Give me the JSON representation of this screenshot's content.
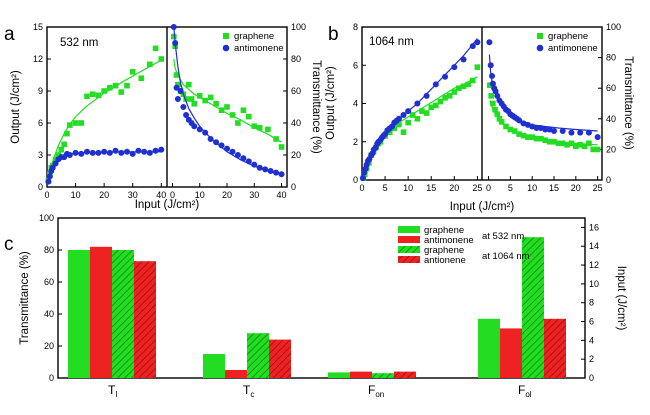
{
  "panel_labels": [
    "a",
    "b",
    "c"
  ],
  "colors": {
    "green": "#22dd22",
    "red": "#ee2222",
    "blue": "#1f2fd0"
  },
  "chart_data": [
    {
      "id": "a-left",
      "panel": "a",
      "type": "scatter",
      "inset_label": "532 nm",
      "xlim": [
        0,
        42
      ],
      "ylim": [
        0,
        15
      ],
      "xticks": [
        0,
        10,
        20,
        30,
        40
      ],
      "yticks": [
        0,
        3,
        6,
        9,
        12,
        15
      ],
      "xlabel": "Input (J/cm²)",
      "ylabel": "Output (J/cm²)",
      "series": [
        {
          "name": "graphene",
          "marker": "square",
          "color": "#22dd22",
          "x": [
            0.5,
            1,
            1.5,
            2,
            3,
            4,
            5,
            6,
            7,
            8,
            10,
            12,
            14,
            16,
            18,
            20,
            22,
            24,
            26,
            28,
            30,
            33,
            36,
            38,
            40
          ],
          "y": [
            0.6,
            1.2,
            1.8,
            2.0,
            2.6,
            3.0,
            3.5,
            4.0,
            5.0,
            5.8,
            6.0,
            6.0,
            8.5,
            8.7,
            8.6,
            9.0,
            9.3,
            9.5,
            8.9,
            9.5,
            10.8,
            10.2,
            11.5,
            13.0,
            12.0
          ],
          "fit_x": [
            0,
            2,
            4,
            6,
            8,
            10,
            12,
            14,
            16,
            18,
            20,
            22,
            24,
            26,
            28,
            30,
            32,
            34,
            36,
            38,
            40
          ],
          "fit_y": [
            0.3,
            2.4,
            3.9,
            5.0,
            5.9,
            6.6,
            7.1,
            7.6,
            8.0,
            8.4,
            8.8,
            9.1,
            9.4,
            9.8,
            10.1,
            10.4,
            10.7,
            11.0,
            11.3,
            11.6,
            11.9
          ]
        },
        {
          "name": "antimonene",
          "marker": "circle",
          "color": "#1f2fd0",
          "x": [
            0.5,
            1,
            1.5,
            2,
            3,
            4,
            5,
            6,
            7,
            8,
            10,
            12,
            14,
            16,
            18,
            20,
            22,
            24,
            26,
            28,
            30,
            32,
            34,
            36,
            38,
            40
          ],
          "y": [
            0.5,
            1.0,
            1.5,
            1.8,
            2.2,
            2.6,
            2.8,
            2.8,
            3.1,
            3.0,
            3.2,
            3.1,
            3.3,
            3.2,
            3.2,
            3.3,
            3.2,
            3.4,
            3.2,
            3.3,
            3.1,
            3.4,
            3.3,
            3.2,
            3.4,
            3.5
          ],
          "fit_x": [
            0,
            1,
            2,
            3,
            4,
            5,
            6,
            8,
            10,
            12,
            15,
            20,
            25,
            30,
            35,
            40
          ],
          "fit_y": [
            0.3,
            1.0,
            1.6,
            2.1,
            2.4,
            2.7,
            2.9,
            3.1,
            3.15,
            3.2,
            3.25,
            3.3,
            3.3,
            3.3,
            3.3,
            3.3
          ]
        }
      ]
    },
    {
      "id": "a-right",
      "panel": "a",
      "type": "scatter",
      "xlim": [
        -2,
        42
      ],
      "ylim": [
        0,
        100
      ],
      "xticks": [
        0,
        10,
        20,
        30,
        40
      ],
      "yticks": [
        0,
        20,
        40,
        60,
        80,
        100
      ],
      "ylabel": "Transmittance (%)",
      "legend": [
        "graphene",
        "antimonene"
      ],
      "series": [
        {
          "name": "graphene",
          "marker": "square",
          "color": "#22dd22",
          "x": [
            0.5,
            1,
            1.5,
            2,
            3,
            4,
            5,
            6,
            7,
            8,
            10,
            12,
            14,
            16,
            18,
            20,
            22,
            24,
            26,
            28,
            30,
            32,
            35,
            38,
            40
          ],
          "y": [
            94,
            88,
            70,
            64,
            60,
            58,
            55,
            64,
            55,
            52,
            57,
            54,
            56,
            52,
            48,
            50,
            45,
            40,
            48,
            44,
            38,
            37,
            36,
            30,
            25
          ],
          "fit_x": [
            0.5,
            1,
            2,
            3,
            4,
            6,
            8,
            10,
            15,
            20,
            25,
            30,
            35,
            40
          ],
          "fit_y": [
            80,
            74,
            70,
            67,
            64,
            61,
            58,
            56,
            51,
            46,
            42,
            37,
            33,
            28
          ]
        },
        {
          "name": "antimonene",
          "marker": "circle",
          "color": "#1f2fd0",
          "x": [
            0.5,
            1,
            1.5,
            2,
            3,
            4,
            5,
            6,
            7,
            8,
            10,
            12,
            14,
            16,
            18,
            20,
            22,
            24,
            26,
            28,
            30,
            32,
            34,
            36,
            38,
            40
          ],
          "y": [
            100,
            90,
            62,
            55,
            60,
            50,
            45,
            42,
            40,
            38,
            36,
            34,
            30,
            28,
            26,
            24,
            22,
            20,
            18,
            16,
            14,
            12,
            11,
            10,
            9,
            8
          ],
          "fit_x": [
            0.5,
            1,
            2,
            3,
            4,
            6,
            8,
            10,
            12,
            15,
            20,
            25,
            30,
            35,
            40
          ],
          "fit_y": [
            100,
            90,
            75,
            65,
            58,
            49,
            43,
            38,
            34,
            29,
            22,
            17,
            13,
            10,
            8
          ]
        }
      ]
    },
    {
      "id": "b-left",
      "panel": "b",
      "type": "scatter",
      "inset_label": "1064 nm",
      "xlim": [
        0,
        26
      ],
      "ylim": [
        0,
        8
      ],
      "xticks": [
        0,
        5,
        10,
        15,
        20,
        25
      ],
      "yticks": [
        0,
        2,
        4,
        6,
        8
      ],
      "xlabel": "Input (J/cm²)",
      "ylabel": "Output (J/cm²)",
      "series": [
        {
          "name": "graphene",
          "marker": "square",
          "color": "#22dd22",
          "x": [
            0.3,
            0.6,
            1,
            1.5,
            2,
            2.5,
            3,
            3.5,
            4,
            5,
            6,
            7,
            8,
            9,
            10,
            11,
            12,
            13,
            14,
            15,
            16,
            17,
            18,
            19,
            20,
            21,
            22,
            23,
            24,
            25
          ],
          "y": [
            0.1,
            0.3,
            0.6,
            0.9,
            1.3,
            1.5,
            1.7,
            1.9,
            2.0,
            2.3,
            2.5,
            2.7,
            2.9,
            2.5,
            3.0,
            3.4,
            3.2,
            3.6,
            3.5,
            3.8,
            3.9,
            4.1,
            4.3,
            4.4,
            4.6,
            4.8,
            4.9,
            5.0,
            5.2,
            5.9
          ],
          "fit_x": [
            0,
            2,
            4,
            6,
            8,
            10,
            12,
            14,
            16,
            18,
            20,
            22,
            25
          ],
          "fit_y": [
            0.2,
            1.3,
            2.1,
            2.6,
            3.0,
            3.3,
            3.6,
            3.9,
            4.2,
            4.5,
            4.8,
            5.0,
            5.4
          ]
        },
        {
          "name": "antimonene",
          "marker": "circle",
          "color": "#1f2fd0",
          "x": [
            0.2,
            0.5,
            0.8,
            1,
            1.3,
            1.6,
            2,
            2.3,
            2.6,
            3,
            3.3,
            3.6,
            4,
            4.3,
            4.6,
            5,
            5.5,
            6,
            6.5,
            7,
            7.5,
            8,
            9,
            10,
            12,
            14,
            16,
            18,
            20,
            22,
            24,
            25
          ],
          "y": [
            0.1,
            0.4,
            0.6,
            0.8,
            1.0,
            1.1,
            1.3,
            1.4,
            1.6,
            1.7,
            1.9,
            2.0,
            2.1,
            2.2,
            2.3,
            2.4,
            2.6,
            2.7,
            2.8,
            3.0,
            3.1,
            3.2,
            3.4,
            3.6,
            4.0,
            4.4,
            5.0,
            5.4,
            5.9,
            6.3,
            7.0,
            7.2
          ],
          "fit_x": [
            0,
            2,
            4,
            6,
            8,
            10,
            12,
            14,
            16,
            18,
            20,
            22,
            24,
            25
          ],
          "fit_y": [
            0.2,
            1.4,
            2.3,
            2.8,
            3.2,
            3.6,
            4.0,
            4.5,
            5.0,
            5.5,
            6.0,
            6.5,
            7.1,
            7.4
          ]
        }
      ]
    },
    {
      "id": "b-right",
      "panel": "b",
      "type": "scatter",
      "xlim": [
        -1.5,
        26
      ],
      "ylim": [
        0,
        100
      ],
      "xticks": [
        0,
        5,
        10,
        15,
        20,
        25
      ],
      "yticks": [
        0,
        20,
        40,
        60,
        80,
        100
      ],
      "ylabel": "Transmittance (%)",
      "legend": [
        "graphene",
        "antimonene"
      ],
      "series": [
        {
          "name": "graphene",
          "marker": "square",
          "color": "#22dd22",
          "x": [
            0.3,
            0.6,
            1,
            1.5,
            2,
            2.5,
            3,
            4,
            5,
            6,
            7,
            8,
            9,
            10,
            11,
            12,
            13,
            14,
            15,
            16,
            17,
            18,
            19,
            20,
            21,
            22,
            23,
            24,
            25
          ],
          "y": [
            62,
            55,
            50,
            46,
            43,
            40,
            38,
            35,
            33,
            32,
            30,
            29,
            28,
            28,
            27,
            27,
            26,
            25,
            25,
            24,
            24,
            23,
            24,
            22,
            23,
            22,
            24,
            20,
            20
          ],
          "fit_x": [
            0.3,
            1,
            2,
            3,
            5,
            7,
            10,
            13,
            16,
            20,
            25
          ],
          "fit_y": [
            52,
            46,
            41,
            37,
            33,
            30,
            28,
            26,
            25,
            24,
            23
          ]
        },
        {
          "name": "antimonene",
          "marker": "circle",
          "color": "#1f2fd0",
          "x": [
            0.2,
            0.5,
            0.8,
            1,
            1.3,
            1.6,
            2,
            2.5,
            3,
            3.5,
            4,
            4.5,
            5,
            5.5,
            6,
            6.5,
            7,
            8,
            9,
            10,
            11,
            12,
            13,
            14,
            15,
            17,
            19,
            21,
            23,
            25
          ],
          "y": [
            90,
            75,
            68,
            63,
            60,
            58,
            55,
            52,
            50,
            48,
            46,
            45,
            43,
            42,
            41,
            40,
            39,
            37,
            36,
            35,
            34,
            34,
            33,
            33,
            32,
            32,
            31,
            31,
            31,
            28
          ],
          "fit_x": [
            0.2,
            0.5,
            1,
            2,
            3,
            5,
            7,
            10,
            13,
            16,
            20,
            25
          ],
          "fit_y": [
            82,
            70,
            61,
            53,
            48,
            42,
            39,
            36,
            35,
            34,
            33,
            32
          ]
        }
      ]
    },
    {
      "id": "c",
      "panel": "c",
      "type": "bar",
      "categories": [
        "TI",
        "Tc",
        "Fon",
        "Fol"
      ],
      "ylabel": "Transmittance (%)",
      "ylim": [
        0,
        100
      ],
      "yticks": [
        0,
        20,
        40,
        60,
        80,
        100
      ],
      "y2label": "Input (J/cm²)",
      "y2lim": [
        0,
        17
      ],
      "y2ticks": [
        0,
        2,
        4,
        6,
        8,
        10,
        12,
        14,
        16
      ],
      "series": [
        {
          "name": "graphene",
          "group": "at 532 nm",
          "color": "#22dd22",
          "hatched": false,
          "values": [
            80,
            15,
            3.5,
            37
          ]
        },
        {
          "name": "antimonene",
          "group": "at 532 nm",
          "color": "#ee2222",
          "hatched": false,
          "values": [
            82,
            5,
            4,
            31
          ]
        },
        {
          "name": "graphene",
          "group": "at 1064 nm",
          "color": "#22dd22",
          "hatched": true,
          "values": [
            80,
            28,
            3,
            88
          ]
        },
        {
          "name": "antionene",
          "group": "at 1064 nm",
          "color": "#ee2222",
          "hatched": true,
          "values": [
            73,
            24,
            4,
            37
          ]
        }
      ],
      "legend_groups": [
        "at 532 nm",
        "at 1064 nm"
      ]
    }
  ]
}
